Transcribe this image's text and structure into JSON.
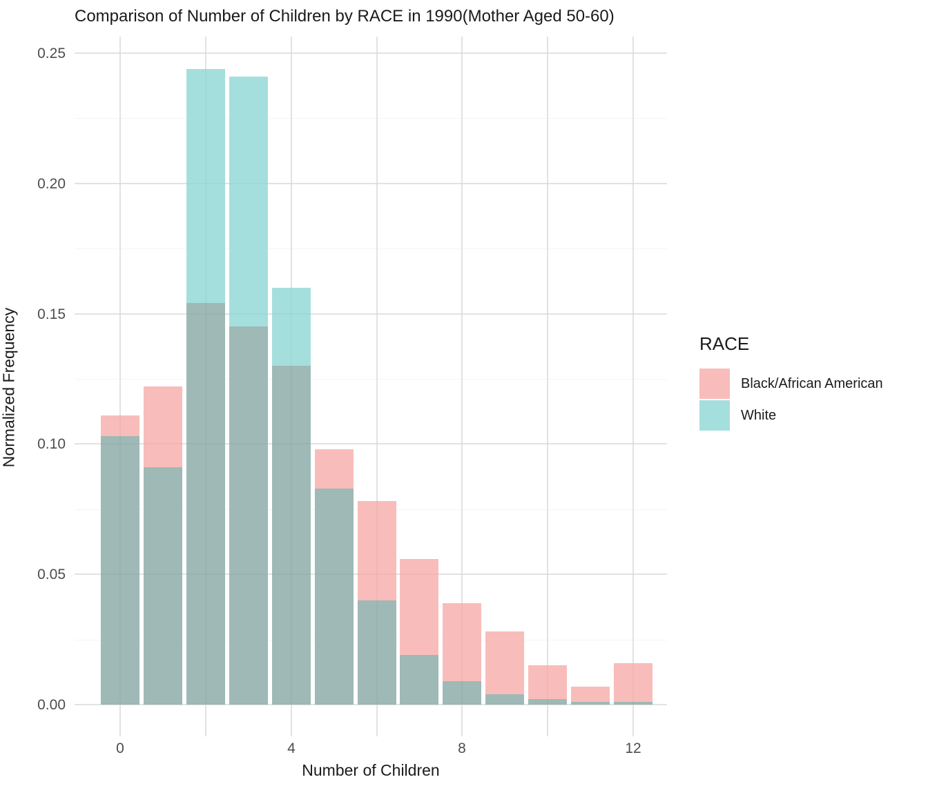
{
  "title": "Comparison of Number of Children by RACE in 1990(Mother Aged 50-60)",
  "legend": {
    "title": "RACE"
  },
  "chart_data": {
    "type": "bar",
    "subtype": "overlaid-histograms-alpha-blended",
    "title": "Comparison of Number of Children by RACE in 1990(Mother Aged 50-60)",
    "xlabel": "Number of Children",
    "ylabel": "Normalized Frequency",
    "x": [
      0,
      1,
      2,
      3,
      4,
      5,
      6,
      7,
      8,
      9,
      10,
      11,
      12
    ],
    "series": [
      {
        "name": "Black/African American",
        "color": "#f8bdba",
        "values": [
          0.111,
          0.122,
          0.154,
          0.145,
          0.13,
          0.098,
          0.078,
          0.056,
          0.039,
          0.028,
          0.015,
          0.007,
          0.016
        ]
      },
      {
        "name": "White",
        "color": "#a5dfdd",
        "values": [
          0.103,
          0.091,
          0.244,
          0.241,
          0.16,
          0.083,
          0.04,
          0.019,
          0.009,
          0.004,
          0.002,
          0.001,
          0.001
        ]
      }
    ],
    "overlap_color": "#9eb9b6",
    "y_ticks": [
      "0.00",
      "0.05",
      "0.10",
      "0.15",
      "0.20",
      "0.25"
    ],
    "y_major_step": 0.05,
    "y_minor_step": 0.025,
    "ylim": [
      -0.0122,
      0.2565
    ],
    "x_gridline_step": 2,
    "x_tick_labels": [
      "0",
      "4",
      "8",
      "12"
    ],
    "x_tick_label_positions": [
      0,
      4,
      8,
      12
    ],
    "grid": "major-and-minor, light grey on white",
    "legend_position": "right",
    "bar_rel_width": 0.905
  }
}
